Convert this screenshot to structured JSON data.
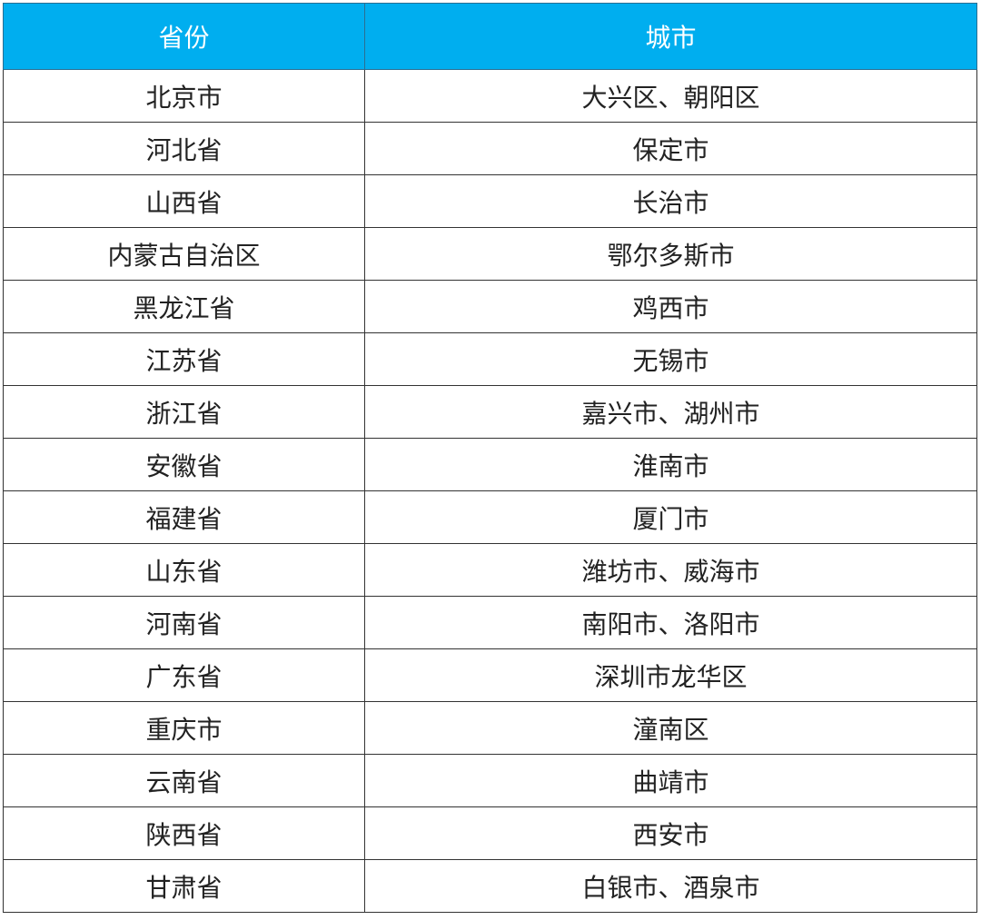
{
  "header_color": "#00AEEF",
  "headers": [
    "省份",
    "城市"
  ],
  "rows": [
    [
      "北京市",
      "大兴区、朝阳区"
    ],
    [
      "河北省",
      "保定市"
    ],
    [
      "山西省",
      "长治市"
    ],
    [
      "内蒙古自治区",
      "鄂尔多斯市"
    ],
    [
      "黑龙江省",
      "鸡西市"
    ],
    [
      "江苏省",
      "无锡市"
    ],
    [
      "浙江省",
      "嘉兴市、湖州市"
    ],
    [
      "安徽省",
      "淮南市"
    ],
    [
      "福建省",
      "厦门市"
    ],
    [
      "山东省",
      "潍坊市、威海市"
    ],
    [
      "河南省",
      "南阳市、洛阳市"
    ],
    [
      "广东省",
      "深圳市龙华区"
    ],
    [
      "重庆市",
      "潼南区"
    ],
    [
      "云南省",
      "曲靖市"
    ],
    [
      "陕西省",
      "西安市"
    ],
    [
      "甘肃省",
      "白银市、酒泉市"
    ]
  ]
}
